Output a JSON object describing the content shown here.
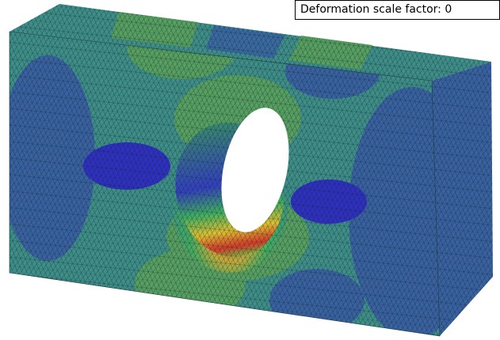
{
  "annotation": "Deformation scale factor: 0"
}
